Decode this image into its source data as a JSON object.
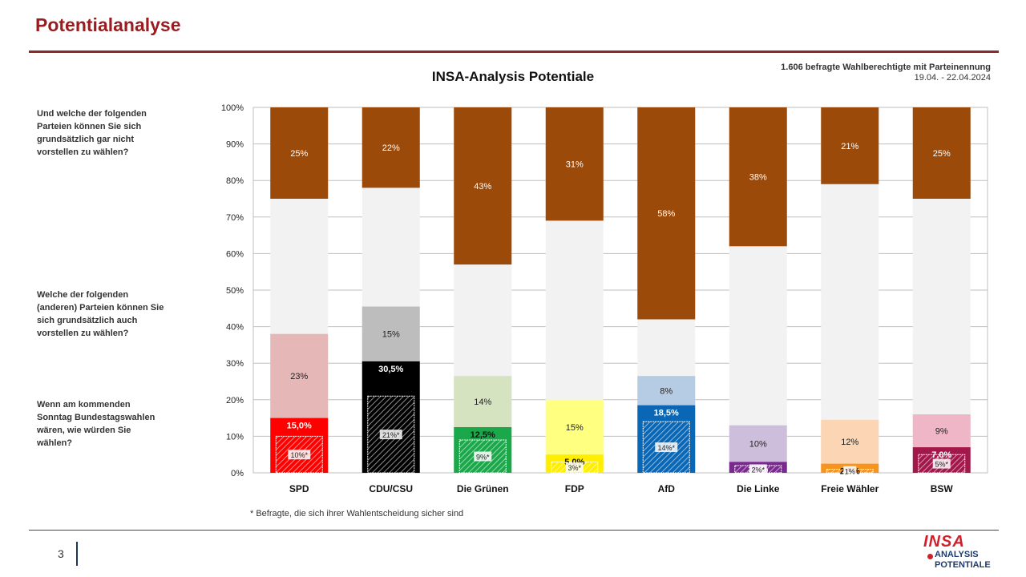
{
  "header": {
    "title": "Potentialanalyse"
  },
  "respondents": {
    "line1": "1.606 befragte Wahlberechtigte mit Parteinennung",
    "line2": "19.04. - 22.04.2024"
  },
  "questions": {
    "q1": "Und welche der folgenden Parteien können Sie sich grundsätzlich gar nicht vorstellen zu wählen?",
    "q2": "Welche der folgenden (anderen) Parteien können Sie sich grundsätzlich auch vorstellen zu wählen?",
    "q3": "Wenn am kommenden Sonntag Bundestagswahlen wären, wie würden Sie wählen?"
  },
  "footnote": "* Befragte, die sich ihrer Wahlentscheidung sicher sind",
  "page_number": "3",
  "logo": {
    "line1": "INSA",
    "line2": "ANALYSIS",
    "line3": "POTENTIALE"
  },
  "chart_data": {
    "type": "bar",
    "title": "INSA-Analysis Potentiale",
    "stacked": true,
    "ylim": [
      0,
      100
    ],
    "yticks": [
      "0%",
      "10%",
      "20%",
      "30%",
      "40%",
      "50%",
      "60%",
      "70%",
      "80%",
      "90%",
      "100%"
    ],
    "grid": true,
    "categories": [
      "SPD",
      "CDU/CSU",
      "Die Grünen",
      "FDP",
      "AfD",
      "Die Linke",
      "Freie Wähler",
      "BSW"
    ],
    "vote": [
      15.0,
      30.5,
      12.5,
      5.0,
      18.5,
      3.0,
      2.5,
      7.0
    ],
    "vote_labels": [
      "15,0%",
      "30,5%",
      "12,5%",
      "5,0%",
      "18,5%",
      "3,0%",
      "2,5%",
      "7,0%"
    ],
    "sure": [
      10,
      21,
      9,
      3,
      14,
      2,
      1,
      5
    ],
    "sure_labels": [
      "10%*",
      "21%*",
      "9%*",
      "3%*",
      "14%*",
      "2%*",
      "1%",
      "5%*"
    ],
    "potential": [
      23,
      15,
      14,
      15,
      8,
      10,
      12,
      9
    ],
    "potential_labels": [
      "23%",
      "15%",
      "14%",
      "15%",
      "8%",
      "10%",
      "12%",
      "9%"
    ],
    "never": [
      25,
      22,
      43,
      31,
      58,
      38,
      21,
      25
    ],
    "never_labels": [
      "25%",
      "22%",
      "43%",
      "31%",
      "58%",
      "38%",
      "21%",
      "25%"
    ],
    "colors": {
      "vote": [
        "#ff0000",
        "#000000",
        "#1aa84a",
        "#ffee00",
        "#0a67b5",
        "#7a2a8f",
        "#f7941d",
        "#a3184a"
      ],
      "potential": [
        "#e6b7b7",
        "#bdbdbd",
        "#d6e3c1",
        "#ffff80",
        "#b6cbe4",
        "#cdbfdb",
        "#fcd6b4",
        "#efb6c8"
      ],
      "never": "#9b4a0a",
      "rest": "#f2f2f2"
    }
  }
}
